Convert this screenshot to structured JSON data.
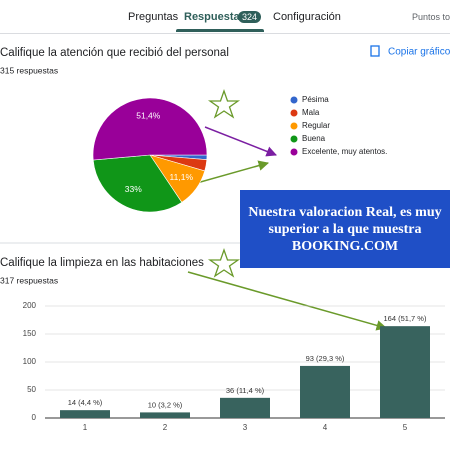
{
  "tabs": [
    "Preguntas",
    "Respuestas",
    "Configuración"
  ],
  "response_count": "324",
  "points": "Puntos totales",
  "copy_button": "Copiar gráfico",
  "annotation": "Nuestra valoracion Real, es muy superior a la que muestra BOOKING.COM",
  "chart_data": [
    {
      "type": "pie",
      "title": "Califique la atención que recibió del personal",
      "subtitle": "315 respuestas",
      "categories": [
        "Pésima",
        "Mala",
        "Regular",
        "Buena",
        "Excelente, muy atentos."
      ],
      "values": [
        1.3,
        3.2,
        11.1,
        33,
        51.4
      ],
      "value_labels": [
        null,
        null,
        "11,1%",
        "33%",
        "51,4%"
      ],
      "colors": [
        "#3366cc",
        "#dc3912",
        "#ff9900",
        "#109618",
        "#990099"
      ]
    },
    {
      "type": "bar",
      "title": "Califique la limpieza en las habitaciones",
      "subtitle": "317 respuestas",
      "categories": [
        "1",
        "2",
        "3",
        "4",
        "5"
      ],
      "values": [
        14,
        10,
        36,
        93,
        164
      ],
      "value_labels": [
        "14 (4,4 %)",
        "10 (3,2 %)",
        "36 (11,4 %)",
        "93 (29,3 %)",
        "164 (51,7 %)"
      ],
      "color": "#38635e",
      "ylim": [
        0,
        200
      ],
      "yticks": [
        0,
        50,
        100,
        150,
        200
      ],
      "grid": true
    }
  ]
}
